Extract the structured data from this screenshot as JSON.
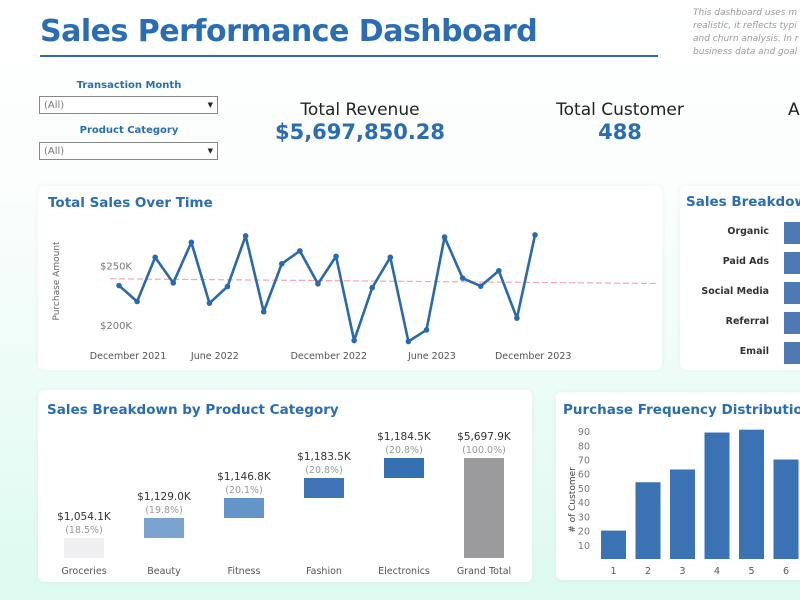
{
  "header": {
    "title": "Sales Performance Dashboard",
    "note_lines": [
      "This dashboard uses m",
      "realistic, it reflects typi",
      "and churn analysis. In r",
      "business data and goal"
    ]
  },
  "filters": [
    {
      "label": "Transaction Month",
      "value": "(All)"
    },
    {
      "label": "Product Category",
      "value": "(All)"
    }
  ],
  "kpis": [
    {
      "label": "Total Revenue",
      "value": "$5,697,850.28"
    },
    {
      "label": "Total Customer",
      "value": "488"
    },
    {
      "label": "A",
      "value": ""
    }
  ],
  "colors": {
    "accent": "#2a6db5",
    "line": "#2b69ad",
    "trend": "#f4a6b4",
    "bar": "#3a72b3",
    "grand_total": "#9b9b9e"
  },
  "chart_data": [
    {
      "type": "line",
      "title": "Total Sales Over Time",
      "ylabel": "Purchase Amount",
      "xlabel": "",
      "y_ticks": [
        {
          "v": 200,
          "label": "$200K"
        },
        {
          "v": 250,
          "label": "$250K"
        }
      ],
      "x_ticks": [
        {
          "i": 0.5,
          "label": "December 2021"
        },
        {
          "i": 5.3,
          "label": "June 2022"
        },
        {
          "i": 11.6,
          "label": "December 2022"
        },
        {
          "i": 17.3,
          "label": "June 2023"
        },
        {
          "i": 22.9,
          "label": "December 2023"
        }
      ],
      "ylim": [
        180,
        285
      ],
      "values": [
        233.3,
        219.9,
        257,
        235.5,
        269.6,
        218.5,
        232.5,
        275,
        211.3,
        251.6,
        262.4,
        234.7,
        257.8,
        187.1,
        231.5,
        257,
        186.3,
        196,
        274,
        239.5,
        232.8,
        245.7,
        205.9,
        275.8
      ],
      "trend": [
        239,
        235
      ]
    },
    {
      "type": "bar",
      "title": "Sales Breakdown",
      "categories": [
        "Organic",
        "Paid Ads",
        "Social Media",
        "Referral",
        "Email"
      ]
    },
    {
      "type": "waterfall",
      "title": "Sales Breakdown by Product Category",
      "categories": [
        "Groceries",
        "Beauty",
        "Fitness",
        "Fashion",
        "Electronics",
        "Grand Total"
      ],
      "value_labels": [
        "$1,054.1K",
        "$1,129.0K",
        "$1,146.8K",
        "$1,183.5K",
        "$1,184.5K",
        "$5,697.9K"
      ],
      "pct_labels": [
        "(18.5%)",
        "(19.8%)",
        "(20.1%)",
        "(20.8%)",
        "(20.8%)",
        "(100.0%)"
      ],
      "values": [
        1054.1,
        1129.0,
        1146.8,
        1183.5,
        1184.5,
        5697.9
      ],
      "bar_colors": [
        "#efeff1",
        "#7aa3cf",
        "#6495c9",
        "#3f74b6",
        "#3470b2",
        "#9b9b9e"
      ]
    },
    {
      "type": "bar",
      "title": "Purchase Frequency Distribution",
      "ylabel": "# of Customer",
      "categories": [
        "1",
        "2",
        "3",
        "4",
        "5",
        "6"
      ],
      "values": [
        20,
        54,
        63,
        89,
        91,
        70
      ],
      "y_ticks": [
        10,
        20,
        30,
        40,
        50,
        60,
        70,
        80,
        90
      ],
      "ylim": [
        0,
        95
      ]
    }
  ]
}
